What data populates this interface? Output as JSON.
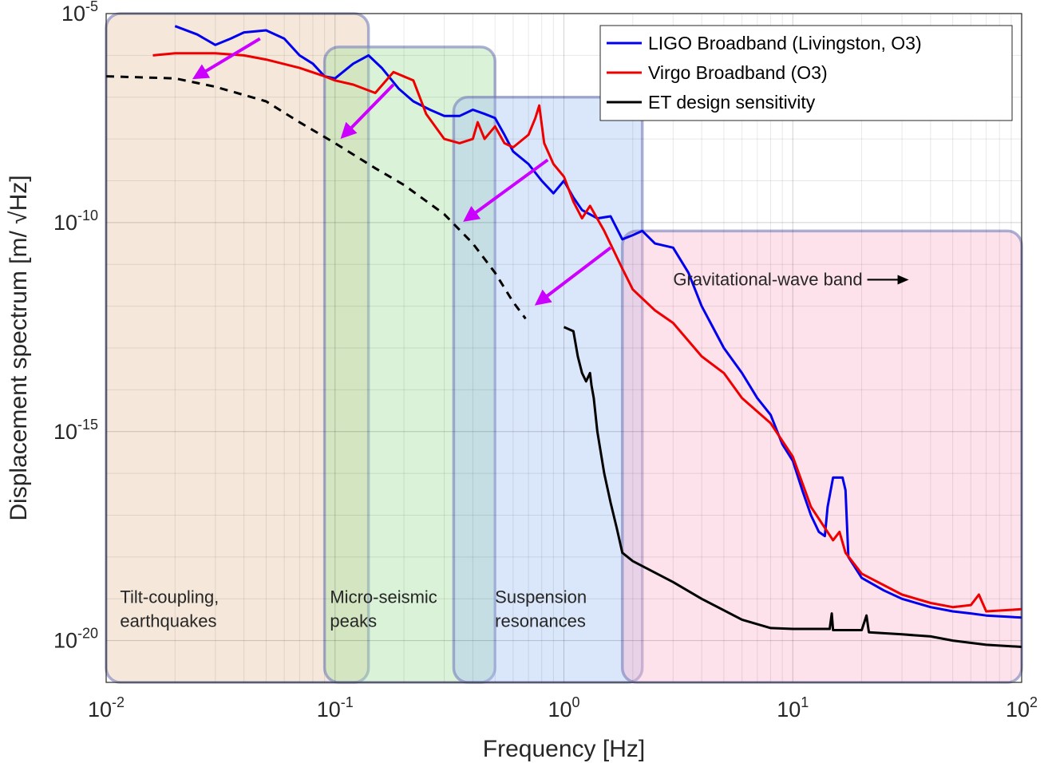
{
  "chart_data": {
    "type": "line",
    "xlabel": "Frequency [Hz]",
    "ylabel": "Displacement spectrum [m/ √Hz]",
    "xscale": "log",
    "yscale": "log",
    "xlim": [
      0.01,
      100
    ],
    "ylim": [
      1e-21,
      1e-05
    ],
    "grid": true,
    "legend_position": "top-right",
    "x_ticks": [
      {
        "base": "10",
        "exp": "-2"
      },
      {
        "base": "10",
        "exp": "-1"
      },
      {
        "base": "10",
        "exp": "0"
      },
      {
        "base": "10",
        "exp": "1"
      },
      {
        "base": "10",
        "exp": "2"
      }
    ],
    "y_ticks": [
      {
        "value_exp": -5,
        "base": "10",
        "exp": "-5"
      },
      {
        "value_exp": -10,
        "base": "10",
        "exp": "-10"
      },
      {
        "value_exp": -15,
        "base": "10",
        "exp": "-15"
      },
      {
        "value_exp": -20,
        "base": "10",
        "exp": "-20"
      }
    ],
    "bands": [
      {
        "name": "Tilt-coupling, earthquakes",
        "label_lines": [
          "Tilt-coupling,",
          "earthquakes"
        ],
        "f_range": [
          0.01,
          0.14
        ],
        "top_exp": -5.0,
        "label_at": [
          0.0115,
          -19.1
        ],
        "color": "#e8c8a8"
      },
      {
        "name": "Micro-seismic peaks",
        "label_lines": [
          "Micro-seismic",
          "peaks"
        ],
        "f_range": [
          0.09,
          0.5
        ],
        "top_exp": -5.8,
        "label_at": [
          0.095,
          -19.1
        ],
        "color": "#a6e0a0"
      },
      {
        "name": "Suspension resonances",
        "label_lines": [
          "Suspension",
          "resonances"
        ],
        "f_range": [
          0.33,
          2.2
        ],
        "top_exp": -7.0,
        "label_at": [
          0.5,
          -19.1
        ],
        "color": "#a8c4f2"
      },
      {
        "name": "Gravitational-wave band",
        "label_lines": [
          "Gravitational-wave band"
        ],
        "f_range": [
          1.8,
          100
        ],
        "top_exp": -10.2,
        "label_at": [
          3.0,
          -11.5
        ],
        "color": "#fbb8d0"
      }
    ],
    "gw_arrow_label": "Gravitational-wave band",
    "series": [
      {
        "name": "LIGO Broadband (Livingston, O3)",
        "color": "#0000ee",
        "points": [
          [
            0.02,
            -5.3
          ],
          [
            0.025,
            -5.5
          ],
          [
            0.03,
            -5.75
          ],
          [
            0.035,
            -5.6
          ],
          [
            0.04,
            -5.45
          ],
          [
            0.05,
            -5.4
          ],
          [
            0.06,
            -5.6
          ],
          [
            0.07,
            -6.0
          ],
          [
            0.08,
            -6.2
          ],
          [
            0.09,
            -6.5
          ],
          [
            0.1,
            -6.55
          ],
          [
            0.12,
            -6.2
          ],
          [
            0.14,
            -6.0
          ],
          [
            0.16,
            -6.3
          ],
          [
            0.19,
            -6.8
          ],
          [
            0.22,
            -7.1
          ],
          [
            0.26,
            -7.3
          ],
          [
            0.3,
            -7.45
          ],
          [
            0.35,
            -7.45
          ],
          [
            0.4,
            -7.3
          ],
          [
            0.45,
            -7.4
          ],
          [
            0.5,
            -7.5
          ],
          [
            0.55,
            -7.9
          ],
          [
            0.6,
            -8.3
          ],
          [
            0.7,
            -8.6
          ],
          [
            0.8,
            -9.0
          ],
          [
            0.9,
            -9.3
          ],
          [
            1.0,
            -9.0
          ],
          [
            1.1,
            -9.4
          ],
          [
            1.2,
            -9.7
          ],
          [
            1.4,
            -9.9
          ],
          [
            1.6,
            -9.85
          ],
          [
            1.8,
            -10.4
          ],
          [
            2.0,
            -10.3
          ],
          [
            2.2,
            -10.2
          ],
          [
            2.5,
            -10.5
          ],
          [
            3.0,
            -10.6
          ],
          [
            3.5,
            -11.2
          ],
          [
            4.0,
            -12.0
          ],
          [
            5.0,
            -13.0
          ],
          [
            6.0,
            -13.6
          ],
          [
            7.0,
            -14.2
          ],
          [
            8.0,
            -14.6
          ],
          [
            9.0,
            -15.3
          ],
          [
            10.0,
            -15.7
          ],
          [
            11.0,
            -16.4
          ],
          [
            12.0,
            -17.0
          ],
          [
            13.0,
            -17.4
          ],
          [
            13.8,
            -17.5
          ],
          [
            14.2,
            -16.8
          ],
          [
            15.0,
            -16.1
          ],
          [
            16.5,
            -16.1
          ],
          [
            17.0,
            -16.4
          ],
          [
            17.5,
            -18.0
          ],
          [
            20.0,
            -18.5
          ],
          [
            25.0,
            -18.8
          ],
          [
            30.0,
            -19.0
          ],
          [
            40.0,
            -19.2
          ],
          [
            50.0,
            -19.3
          ],
          [
            60.0,
            -19.35
          ],
          [
            70.0,
            -19.4
          ],
          [
            100.0,
            -19.45
          ]
        ]
      },
      {
        "name": "Virgo Broadband (O3)",
        "color": "#ee0000",
        "points": [
          [
            0.016,
            -6.0
          ],
          [
            0.02,
            -5.95
          ],
          [
            0.03,
            -5.95
          ],
          [
            0.04,
            -6.0
          ],
          [
            0.05,
            -6.1
          ],
          [
            0.07,
            -6.3
          ],
          [
            0.09,
            -6.5
          ],
          [
            0.1,
            -6.6
          ],
          [
            0.12,
            -6.7
          ],
          [
            0.15,
            -6.9
          ],
          [
            0.18,
            -6.4
          ],
          [
            0.22,
            -6.6
          ],
          [
            0.25,
            -7.4
          ],
          [
            0.3,
            -8.0
          ],
          [
            0.35,
            -8.1
          ],
          [
            0.4,
            -8.0
          ],
          [
            0.42,
            -7.6
          ],
          [
            0.45,
            -8.0
          ],
          [
            0.5,
            -7.7
          ],
          [
            0.55,
            -8.1
          ],
          [
            0.6,
            -8.2
          ],
          [
            0.7,
            -7.9
          ],
          [
            0.75,
            -7.5
          ],
          [
            0.78,
            -7.2
          ],
          [
            0.82,
            -8.1
          ],
          [
            0.9,
            -8.6
          ],
          [
            1.0,
            -8.9
          ],
          [
            1.1,
            -9.5
          ],
          [
            1.2,
            -9.9
          ],
          [
            1.3,
            -9.6
          ],
          [
            1.5,
            -10.2
          ],
          [
            1.8,
            -11.1
          ],
          [
            2.0,
            -11.6
          ],
          [
            2.5,
            -12.1
          ],
          [
            3.0,
            -12.4
          ],
          [
            4.0,
            -13.2
          ],
          [
            5.0,
            -13.6
          ],
          [
            6.0,
            -14.2
          ],
          [
            8.0,
            -14.8
          ],
          [
            10.0,
            -15.6
          ],
          [
            12.0,
            -16.8
          ],
          [
            15.0,
            -17.6
          ],
          [
            16.0,
            -17.4
          ],
          [
            17.0,
            -17.9
          ],
          [
            20.0,
            -18.4
          ],
          [
            30.0,
            -18.9
          ],
          [
            40.0,
            -19.1
          ],
          [
            50.0,
            -19.2
          ],
          [
            60.0,
            -19.15
          ],
          [
            65.0,
            -18.9
          ],
          [
            70.0,
            -19.3
          ],
          [
            100.0,
            -19.25
          ]
        ]
      },
      {
        "name": "ET design sensitivity",
        "color": "#000000",
        "points": [
          [
            1.0,
            -12.5
          ],
          [
            1.1,
            -12.6
          ],
          [
            1.15,
            -13.2
          ],
          [
            1.2,
            -13.6
          ],
          [
            1.25,
            -13.8
          ],
          [
            1.3,
            -13.6
          ],
          [
            1.32,
            -13.9
          ],
          [
            1.35,
            -14.2
          ],
          [
            1.4,
            -15.0
          ],
          [
            1.5,
            -16.0
          ],
          [
            1.6,
            -16.7
          ],
          [
            1.7,
            -17.3
          ],
          [
            1.8,
            -17.9
          ],
          [
            2.0,
            -18.1
          ],
          [
            3.0,
            -18.6
          ],
          [
            4.0,
            -19.0
          ],
          [
            6.0,
            -19.5
          ],
          [
            8.0,
            -19.7
          ],
          [
            10.0,
            -19.72
          ],
          [
            14.5,
            -19.72
          ],
          [
            14.8,
            -19.35
          ],
          [
            15.0,
            -19.75
          ],
          [
            20.0,
            -19.75
          ],
          [
            21.0,
            -19.4
          ],
          [
            21.5,
            -19.8
          ],
          [
            30.0,
            -19.85
          ],
          [
            40.0,
            -19.9
          ],
          [
            50.0,
            -20.0
          ],
          [
            70.0,
            -20.1
          ],
          [
            100.0,
            -20.15
          ]
        ]
      },
      {
        "name": "ET design sensitivity (extrapolation)",
        "legend": false,
        "style": "dashed",
        "color": "#000000",
        "points": [
          [
            0.01,
            -6.5
          ],
          [
            0.02,
            -6.55
          ],
          [
            0.03,
            -6.75
          ],
          [
            0.05,
            -7.1
          ],
          [
            0.07,
            -7.6
          ],
          [
            0.1,
            -8.1
          ],
          [
            0.15,
            -8.7
          ],
          [
            0.2,
            -9.1
          ],
          [
            0.3,
            -9.8
          ],
          [
            0.4,
            -10.5
          ],
          [
            0.5,
            -11.2
          ],
          [
            0.6,
            -11.9
          ],
          [
            0.68,
            -12.3
          ]
        ]
      }
    ],
    "arrows": [
      {
        "from": [
          0.047,
          -5.6
        ],
        "to": [
          0.025,
          -6.5
        ],
        "color": "#cc00ff"
      },
      {
        "from": [
          0.18,
          -6.7
        ],
        "to": [
          0.11,
          -7.9
        ],
        "color": "#cc00ff"
      },
      {
        "from": [
          0.85,
          -8.5
        ],
        "to": [
          0.38,
          -9.9
        ],
        "color": "#cc00ff"
      },
      {
        "from": [
          1.6,
          -10.6
        ],
        "to": [
          0.78,
          -11.9
        ],
        "color": "#cc00ff"
      }
    ]
  }
}
